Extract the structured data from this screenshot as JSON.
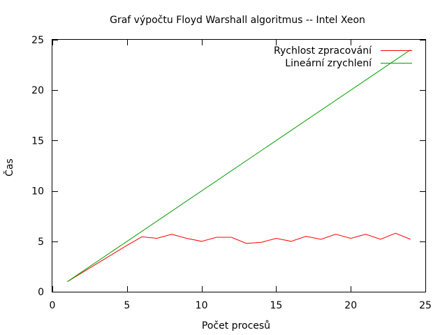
{
  "chart_data": {
    "type": "line",
    "title": "Graf výpočtu Floyd Warshall algoritmus -- Intel Xeon",
    "xlabel": "Počet procesů",
    "ylabel": "Čas",
    "xlim": [
      0,
      25
    ],
    "ylim": [
      0,
      25
    ],
    "xticks": [
      0,
      5,
      10,
      15,
      20,
      25
    ],
    "yticks": [
      0,
      5,
      10,
      15,
      20,
      25
    ],
    "grid": false,
    "legend_position": "top-right",
    "series": [
      {
        "name": "Rychlost zpracování",
        "color": "#ff0000",
        "x": [
          1,
          2,
          3,
          4,
          5,
          6,
          7,
          8,
          9,
          10,
          11,
          12,
          13,
          14,
          15,
          16,
          17,
          18,
          19,
          20,
          21,
          22,
          23,
          24
        ],
        "y": [
          1,
          1.9,
          2.8,
          3.7,
          4.6,
          5.45,
          5.3,
          5.7,
          5.3,
          5.0,
          5.4,
          5.4,
          4.8,
          4.9,
          5.3,
          5.0,
          5.5,
          5.2,
          5.7,
          5.3,
          5.7,
          5.2,
          5.8,
          5.2
        ]
      },
      {
        "name": "Lineární zrychlení",
        "color": "#00a000",
        "x": [
          1,
          24
        ],
        "y": [
          1,
          24
        ]
      }
    ]
  }
}
